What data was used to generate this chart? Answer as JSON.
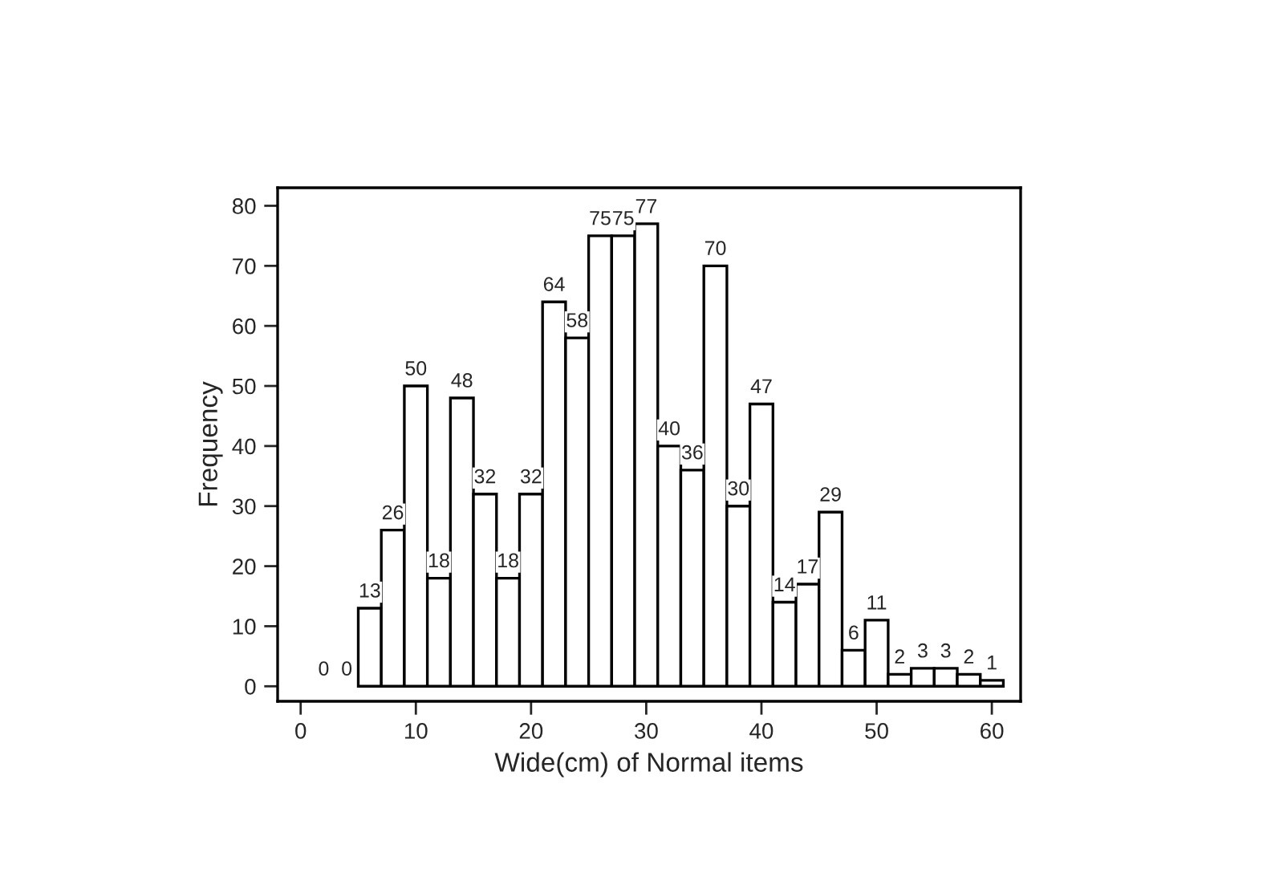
{
  "chart_data": {
    "type": "histogram",
    "xlabel": "Wide(cm) of Normal items",
    "ylabel": "Frequency",
    "bins": [
      1,
      3,
      5,
      7,
      9,
      11,
      13,
      15,
      17,
      19,
      21,
      23,
      25,
      27,
      29,
      31,
      33,
      35,
      37,
      39,
      41,
      43,
      45,
      47,
      49,
      51,
      53,
      55,
      57,
      59,
      61
    ],
    "values": [
      0,
      0,
      13,
      26,
      50,
      18,
      48,
      32,
      18,
      32,
      64,
      58,
      75,
      75,
      77,
      40,
      36,
      70,
      30,
      47,
      14,
      17,
      29,
      6,
      11,
      2,
      3,
      3,
      2,
      1
    ],
    "color": "#ffffff",
    "data_labels": true,
    "grid": false,
    "xlim": [
      -2,
      62.5
    ],
    "xticks": [
      0,
      10,
      20,
      30,
      40,
      50,
      60
    ],
    "ylim": [
      -2.5,
      83
    ],
    "yticks": [
      0,
      10,
      20,
      30,
      40,
      50,
      60,
      70,
      80
    ]
  }
}
